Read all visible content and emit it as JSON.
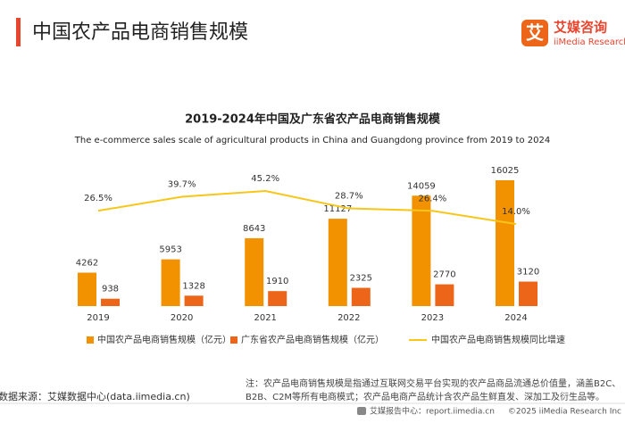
{
  "header": {
    "title": "中国农产品电商销售规模",
    "logo_cn": "艾媒咨询",
    "logo_en": "iiMedia Research",
    "logo_icon": "艾"
  },
  "chart_data": {
    "type": "bar",
    "title": "2019-2024年中国及广东省农产品电商销售规模",
    "subtitle": "The e-commerce sales scale of agricultural products in China and Guangdong province from 2019 to 2024",
    "categories": [
      "2019",
      "2020",
      "2021",
      "2022",
      "2023",
      "2024"
    ],
    "ylim": [
      0,
      18000
    ],
    "y2lim": [
      0,
      100
    ],
    "series": [
      {
        "name": "中国农产品电商销售规模（亿元）",
        "color": "#f39200",
        "values": [
          4262,
          5953,
          8643,
          11127,
          14059,
          16025
        ]
      },
      {
        "name": "广东省农产品电商销售规模（亿元）",
        "color": "#ec6519",
        "values": [
          938,
          1328,
          1910,
          2325,
          2770,
          3120
        ]
      },
      {
        "name": "中国农产品电商销售规模同比增速",
        "color": "#f6c619",
        "type": "line",
        "axis": "y2",
        "values": [
          26.5,
          39.7,
          45.2,
          28.7,
          26.4,
          14.0
        ],
        "value_labels": [
          "26.5%",
          "39.7%",
          "45.2%",
          "28.7%",
          "26.4%",
          "14.0%"
        ]
      }
    ]
  },
  "notes": [
    "注：农产品电商销售规模是指通过互联网交易平台实现的农产品商品流通总价值量，涵盖B2C、",
    "B2B、C2M等所有电商模式；农产品电商产品统计含农产品生鲜直发、深加工及衍生品等。"
  ],
  "source": "数据来源：艾媒数据中心(data.iimedia.cn)",
  "footer": {
    "left": "艾媒报告中心：report.iimedia.cn",
    "right": "©2025  iiMedia Research Inc"
  }
}
